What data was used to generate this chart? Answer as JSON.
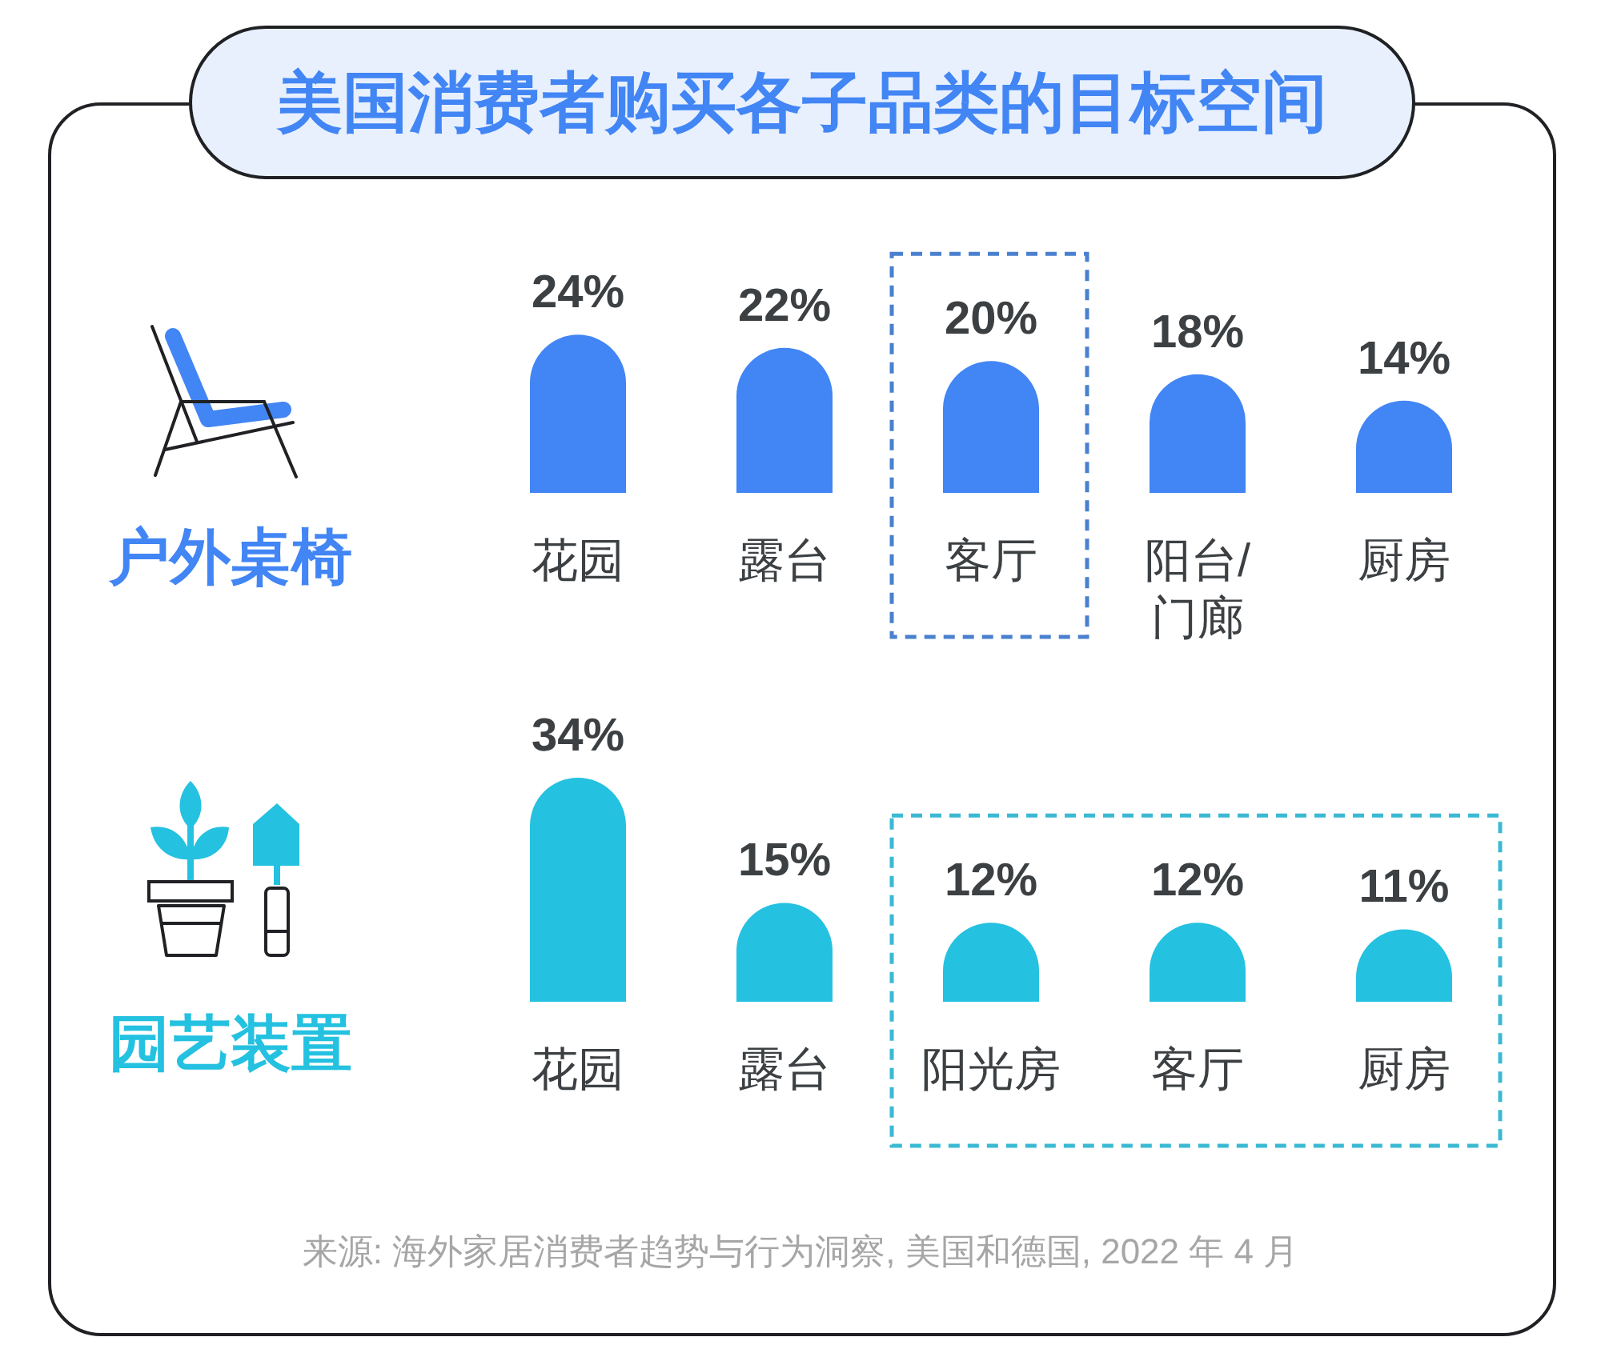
{
  "chart_data": [
    {
      "type": "other",
      "title": "美国消费者购买各子品类的目标空间",
      "annotations": [
        "来源: 海外家居消费者趋势与行为洞察, 美国和德国, 2022 年 4 月"
      ]
    },
    {
      "type": "bar",
      "title": "户外桌椅",
      "categories": [
        "花园",
        "露台",
        "客厅",
        "阳台/门廊",
        "厨房"
      ],
      "values": [
        24,
        22,
        20,
        18,
        14
      ],
      "value_labels": [
        "24%",
        "22%",
        "20%",
        "18%",
        "14%"
      ],
      "color": "#4285f4"
    },
    {
      "type": "bar",
      "title": "园艺装置",
      "categories": [
        "花园",
        "露台",
        "阳光房",
        "客厅",
        "厨房"
      ],
      "values": [
        34,
        15,
        12,
        12,
        11
      ],
      "value_labels": [
        "34%",
        "15%",
        "12%",
        "12%",
        "11%"
      ],
      "color": "#24c1e0"
    }
  ]
}
